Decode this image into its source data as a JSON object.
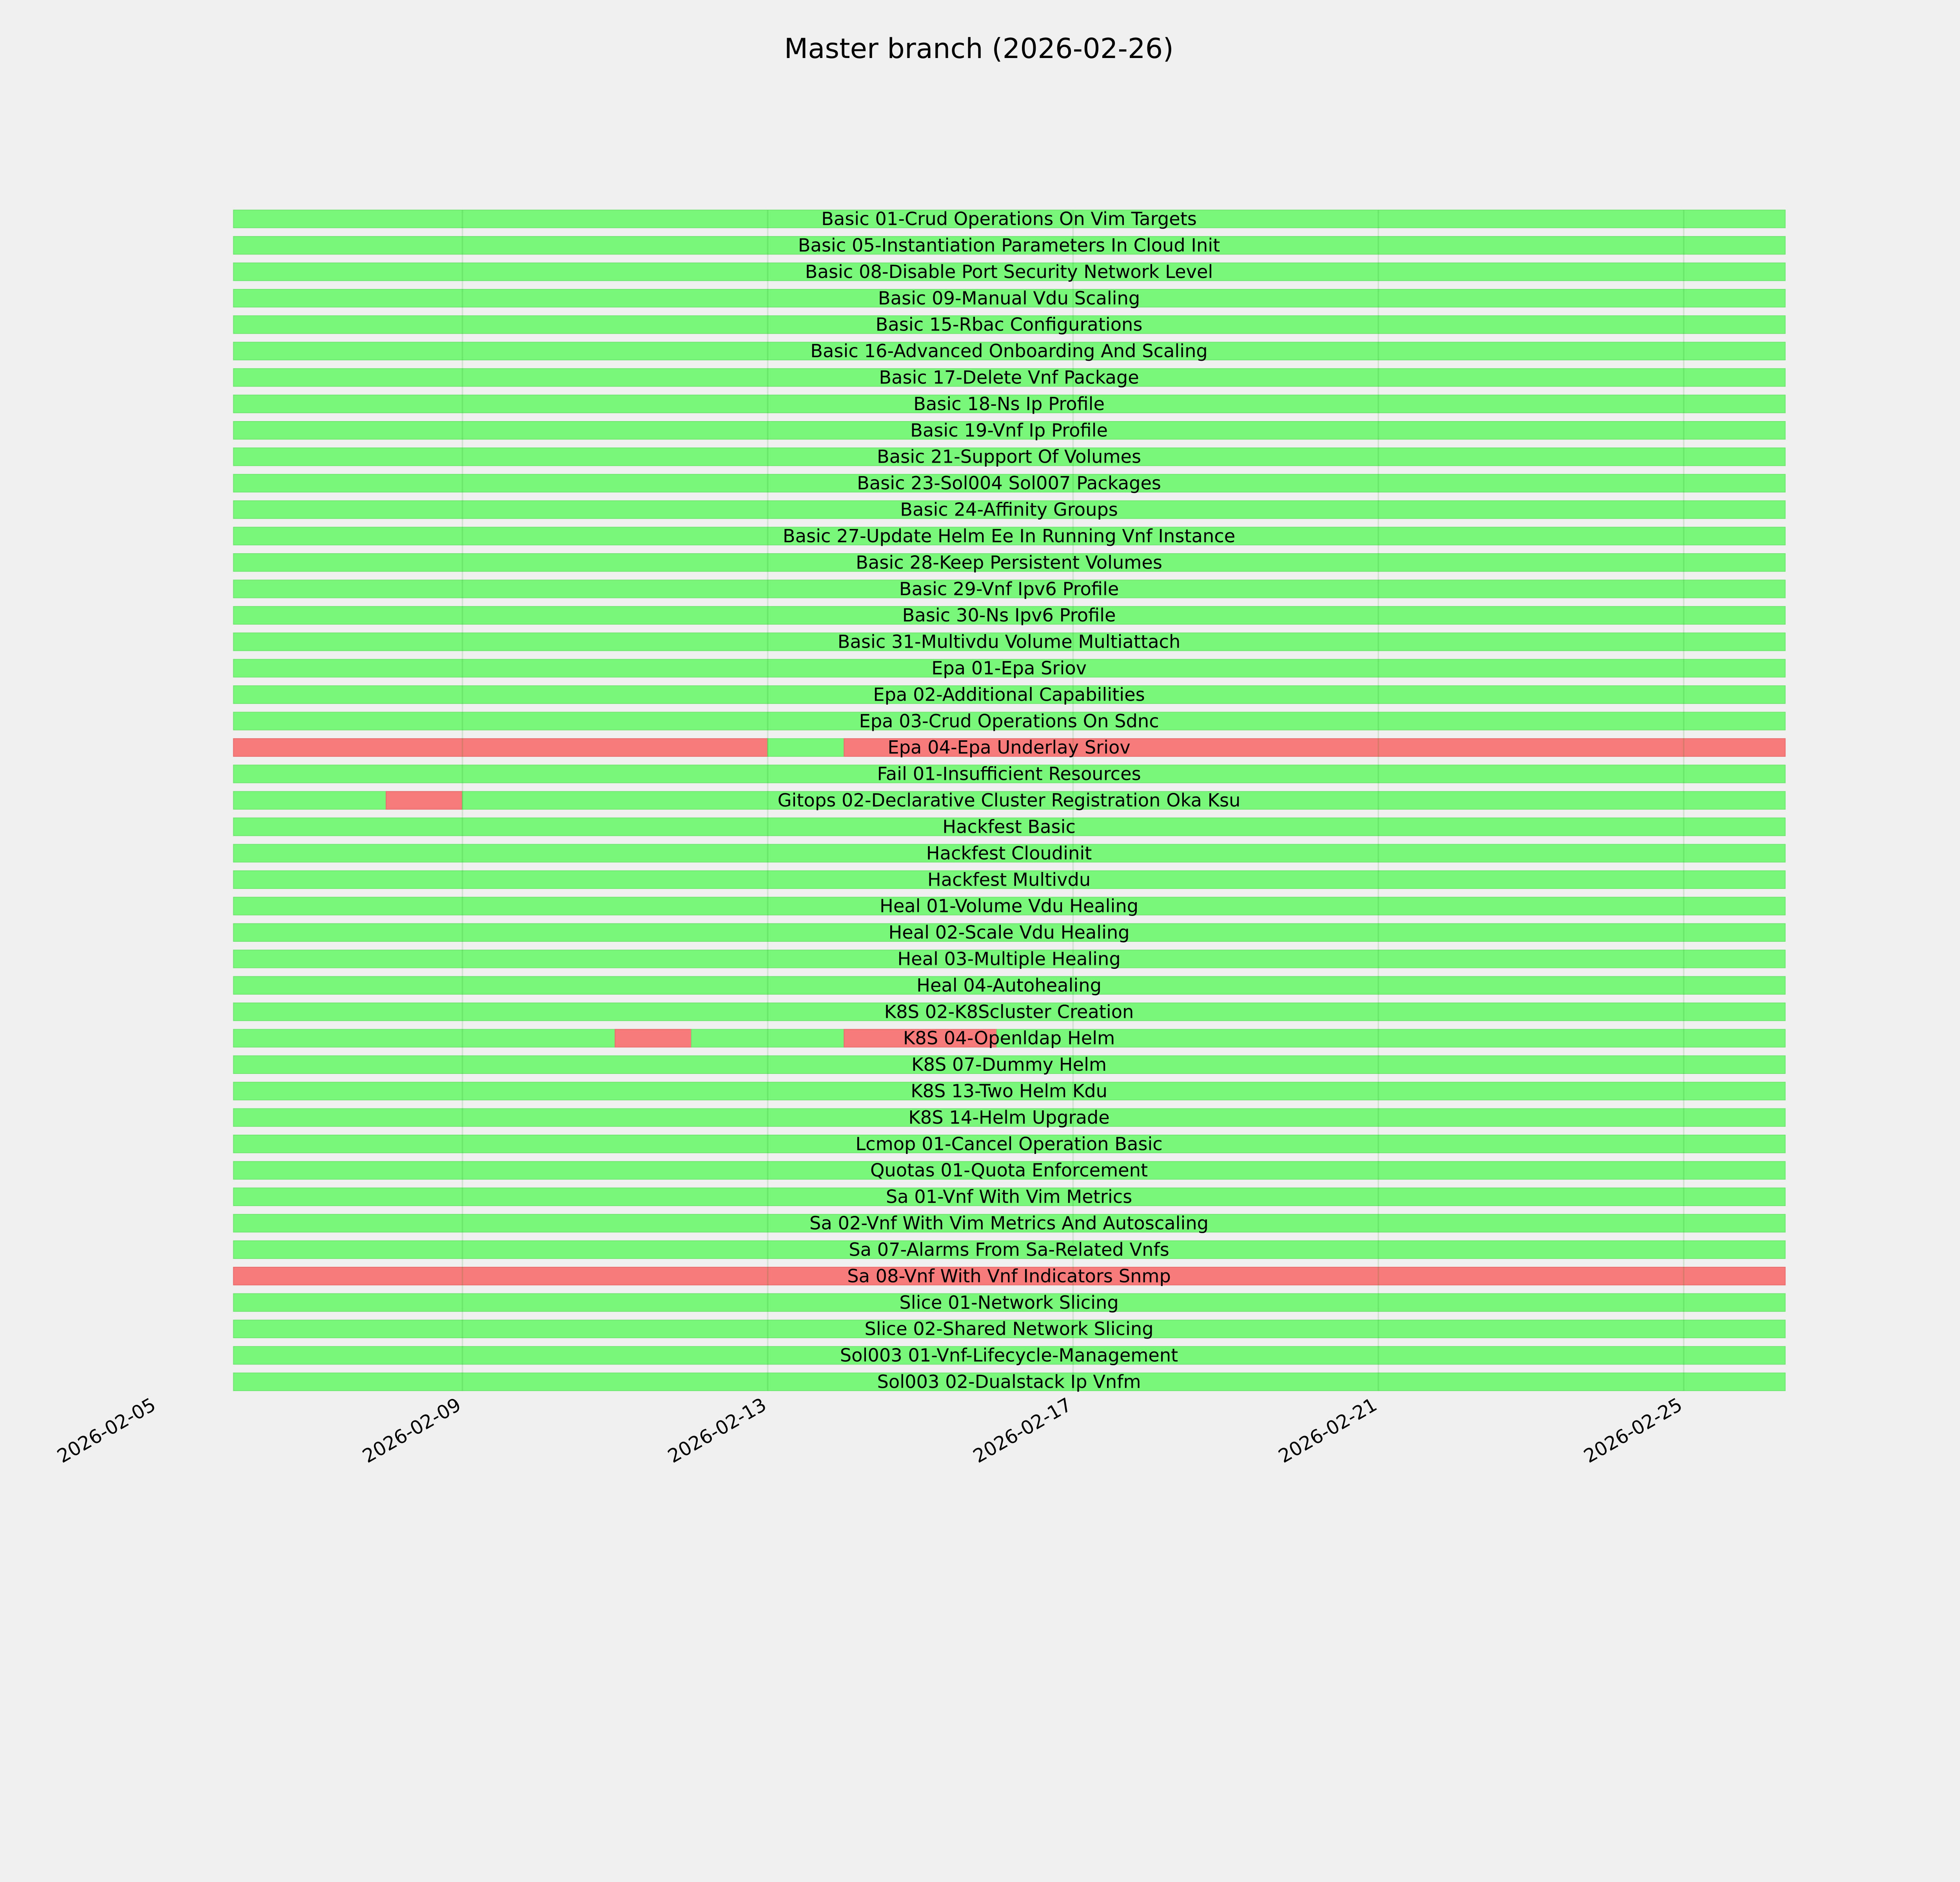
{
  "chart_data": {
    "type": "timeline",
    "title": "Master branch (2026-02-26)",
    "x_unit": "day of February 2026",
    "xlim": [
      4.7,
      26.33
    ],
    "x_ticks": [
      {
        "value": 5,
        "label": "2026-02-05"
      },
      {
        "value": 9,
        "label": "2026-02-09"
      },
      {
        "value": 13,
        "label": "2026-02-13"
      },
      {
        "value": 17,
        "label": "2026-02-17"
      },
      {
        "value": 21,
        "label": "2026-02-21"
      },
      {
        "value": 25,
        "label": "2026-02-25"
      }
    ],
    "grid": true,
    "colors": {
      "pass": "#79f77a",
      "fail": "#f77b7b",
      "background": "#f0f0f0"
    },
    "rows": [
      {
        "label": "Basic 01-Crud Operations On Vim Targets",
        "segments": [
          [
            6,
            26.33,
            "pass"
          ]
        ]
      },
      {
        "label": "Basic 05-Instantiation Parameters In Cloud Init",
        "segments": [
          [
            6,
            26.33,
            "pass"
          ]
        ]
      },
      {
        "label": "Basic 08-Disable Port Security Network Level",
        "segments": [
          [
            6,
            26.33,
            "pass"
          ]
        ]
      },
      {
        "label": "Basic 09-Manual Vdu Scaling",
        "segments": [
          [
            6,
            26.33,
            "pass"
          ]
        ]
      },
      {
        "label": "Basic 15-Rbac Configurations",
        "segments": [
          [
            6,
            26.33,
            "pass"
          ]
        ]
      },
      {
        "label": "Basic 16-Advanced Onboarding And Scaling",
        "segments": [
          [
            6,
            26.33,
            "pass"
          ]
        ]
      },
      {
        "label": "Basic 17-Delete Vnf Package",
        "segments": [
          [
            6,
            26.33,
            "pass"
          ]
        ]
      },
      {
        "label": "Basic 18-Ns Ip Profile",
        "segments": [
          [
            6,
            26.33,
            "pass"
          ]
        ]
      },
      {
        "label": "Basic 19-Vnf Ip Profile",
        "segments": [
          [
            6,
            26.33,
            "pass"
          ]
        ]
      },
      {
        "label": "Basic 21-Support Of Volumes",
        "segments": [
          [
            6,
            26.33,
            "pass"
          ]
        ]
      },
      {
        "label": "Basic 23-Sol004 Sol007 Packages",
        "segments": [
          [
            6,
            26.33,
            "pass"
          ]
        ]
      },
      {
        "label": "Basic 24-Affinity Groups",
        "segments": [
          [
            6,
            26.33,
            "pass"
          ]
        ]
      },
      {
        "label": "Basic 27-Update Helm Ee In Running Vnf Instance",
        "segments": [
          [
            6,
            26.33,
            "pass"
          ]
        ]
      },
      {
        "label": "Basic 28-Keep Persistent Volumes",
        "segments": [
          [
            6,
            26.33,
            "pass"
          ]
        ]
      },
      {
        "label": "Basic 29-Vnf Ipv6 Profile",
        "segments": [
          [
            6,
            26.33,
            "pass"
          ]
        ]
      },
      {
        "label": "Basic 30-Ns Ipv6 Profile",
        "segments": [
          [
            6,
            26.33,
            "pass"
          ]
        ]
      },
      {
        "label": "Basic 31-Multivdu Volume Multiattach",
        "segments": [
          [
            6,
            26.33,
            "pass"
          ]
        ]
      },
      {
        "label": "Epa 01-Epa Sriov",
        "segments": [
          [
            6,
            26.33,
            "pass"
          ]
        ]
      },
      {
        "label": "Epa 02-Additional Capabilities",
        "segments": [
          [
            6,
            26.33,
            "pass"
          ]
        ]
      },
      {
        "label": "Epa 03-Crud Operations On Sdnc",
        "segments": [
          [
            6,
            26.33,
            "pass"
          ]
        ]
      },
      {
        "label": "Epa 04-Epa Underlay Sriov",
        "segments": [
          [
            6,
            13,
            "fail"
          ],
          [
            13,
            14,
            "pass"
          ],
          [
            14,
            26.33,
            "fail"
          ]
        ]
      },
      {
        "label": "Fail 01-Insufficient Resources",
        "segments": [
          [
            6,
            26.33,
            "pass"
          ]
        ]
      },
      {
        "label": "Gitops 02-Declarative Cluster Registration Oka Ksu",
        "segments": [
          [
            6,
            8,
            "pass"
          ],
          [
            8,
            9,
            "fail"
          ],
          [
            9,
            26.33,
            "pass"
          ]
        ]
      },
      {
        "label": "Hackfest Basic",
        "segments": [
          [
            6,
            26.33,
            "pass"
          ]
        ]
      },
      {
        "label": "Hackfest Cloudinit",
        "segments": [
          [
            6,
            26.33,
            "pass"
          ]
        ]
      },
      {
        "label": "Hackfest Multivdu",
        "segments": [
          [
            6,
            26.33,
            "pass"
          ]
        ]
      },
      {
        "label": "Heal 01-Volume Vdu Healing",
        "segments": [
          [
            6,
            26.33,
            "pass"
          ]
        ]
      },
      {
        "label": "Heal 02-Scale Vdu Healing",
        "segments": [
          [
            6,
            26.33,
            "pass"
          ]
        ]
      },
      {
        "label": "Heal 03-Multiple Healing",
        "segments": [
          [
            6,
            26.33,
            "pass"
          ]
        ]
      },
      {
        "label": "Heal 04-Autohealing",
        "segments": [
          [
            6,
            26.33,
            "pass"
          ]
        ]
      },
      {
        "label": "K8S 02-K8Scluster Creation",
        "segments": [
          [
            6,
            26.33,
            "pass"
          ]
        ]
      },
      {
        "label": "K8S 04-Openldap Helm",
        "segments": [
          [
            6,
            11,
            "pass"
          ],
          [
            11,
            12,
            "fail"
          ],
          [
            12,
            14,
            "pass"
          ],
          [
            14,
            16,
            "fail"
          ],
          [
            16,
            26.33,
            "pass"
          ]
        ]
      },
      {
        "label": "K8S 07-Dummy Helm",
        "segments": [
          [
            6,
            26.33,
            "pass"
          ]
        ]
      },
      {
        "label": "K8S 13-Two Helm Kdu",
        "segments": [
          [
            6,
            26.33,
            "pass"
          ]
        ]
      },
      {
        "label": "K8S 14-Helm Upgrade",
        "segments": [
          [
            6,
            26.33,
            "pass"
          ]
        ]
      },
      {
        "label": "Lcmop 01-Cancel Operation Basic",
        "segments": [
          [
            6,
            26.33,
            "pass"
          ]
        ]
      },
      {
        "label": "Quotas 01-Quota Enforcement",
        "segments": [
          [
            6,
            26.33,
            "pass"
          ]
        ]
      },
      {
        "label": "Sa 01-Vnf With Vim Metrics",
        "segments": [
          [
            6,
            26.33,
            "pass"
          ]
        ]
      },
      {
        "label": "Sa 02-Vnf With Vim Metrics And Autoscaling",
        "segments": [
          [
            6,
            26.33,
            "pass"
          ]
        ]
      },
      {
        "label": "Sa 07-Alarms From Sa-Related Vnfs",
        "segments": [
          [
            6,
            26.33,
            "pass"
          ]
        ]
      },
      {
        "label": "Sa 08-Vnf With Vnf Indicators Snmp",
        "segments": [
          [
            6,
            26.33,
            "fail"
          ]
        ]
      },
      {
        "label": "Slice 01-Network Slicing",
        "segments": [
          [
            6,
            26.33,
            "pass"
          ]
        ]
      },
      {
        "label": "Slice 02-Shared Network Slicing",
        "segments": [
          [
            6,
            26.33,
            "pass"
          ]
        ]
      },
      {
        "label": "Sol003 01-Vnf-Lifecycle-Management",
        "segments": [
          [
            6,
            26.33,
            "pass"
          ]
        ]
      },
      {
        "label": "Sol003 02-Dualstack Ip Vnfm",
        "segments": [
          [
            6,
            26.33,
            "pass"
          ]
        ]
      }
    ]
  }
}
